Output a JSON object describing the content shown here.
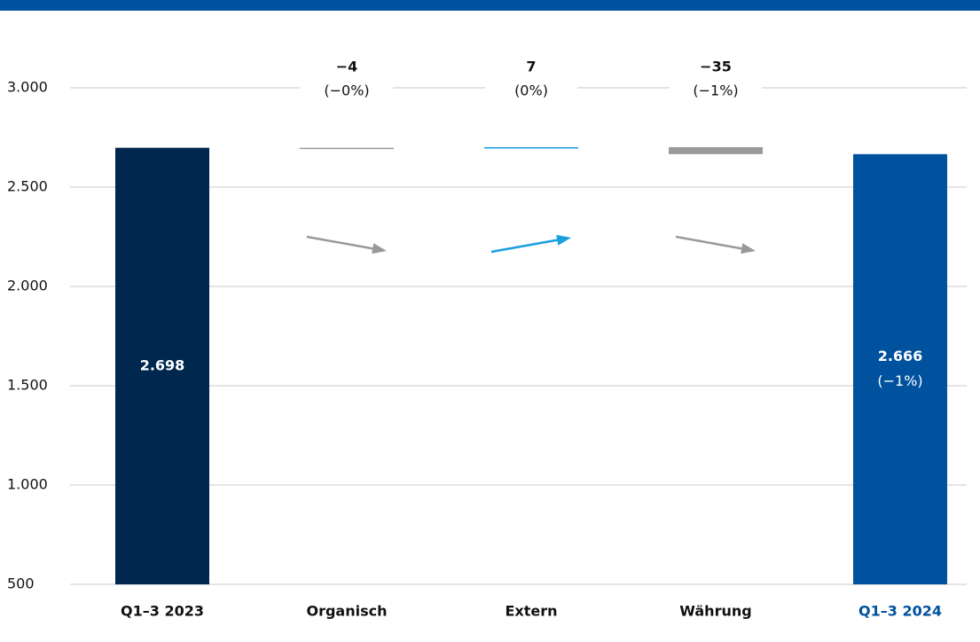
{
  "chart_data": {
    "type": "waterfall",
    "categories": [
      "Q1–3 2023",
      "Organisch",
      "Extern",
      "Währung",
      "Q1–3 2024"
    ],
    "kinds": [
      "total",
      "delta",
      "delta",
      "delta",
      "total"
    ],
    "values": [
      2698,
      -4,
      7,
      -35,
      2666
    ],
    "value_labels": [
      "2.698",
      "−4",
      "7",
      "−35",
      "2.666"
    ],
    "percent_labels": [
      null,
      "(−0%)",
      "(0%)",
      "(−1%)",
      "(−1%)"
    ],
    "colors": [
      "#00284f",
      "#999999",
      "#1a9fdf",
      "#999999",
      "#00519e"
    ],
    "category_label_colors": [
      "#111111",
      "#111111",
      "#111111",
      "#111111",
      "#00519e"
    ],
    "ylim": [
      500,
      3250
    ],
    "yticks": [
      {
        "value": 3000,
        "label": "3.000"
      },
      {
        "value": 2500,
        "label": "2.500"
      },
      {
        "value": 2000,
        "label": "2.000"
      },
      {
        "value": 1500,
        "label": "1.500"
      },
      {
        "value": 1000,
        "label": "1.000"
      },
      500
    ],
    "grid": true
  }
}
